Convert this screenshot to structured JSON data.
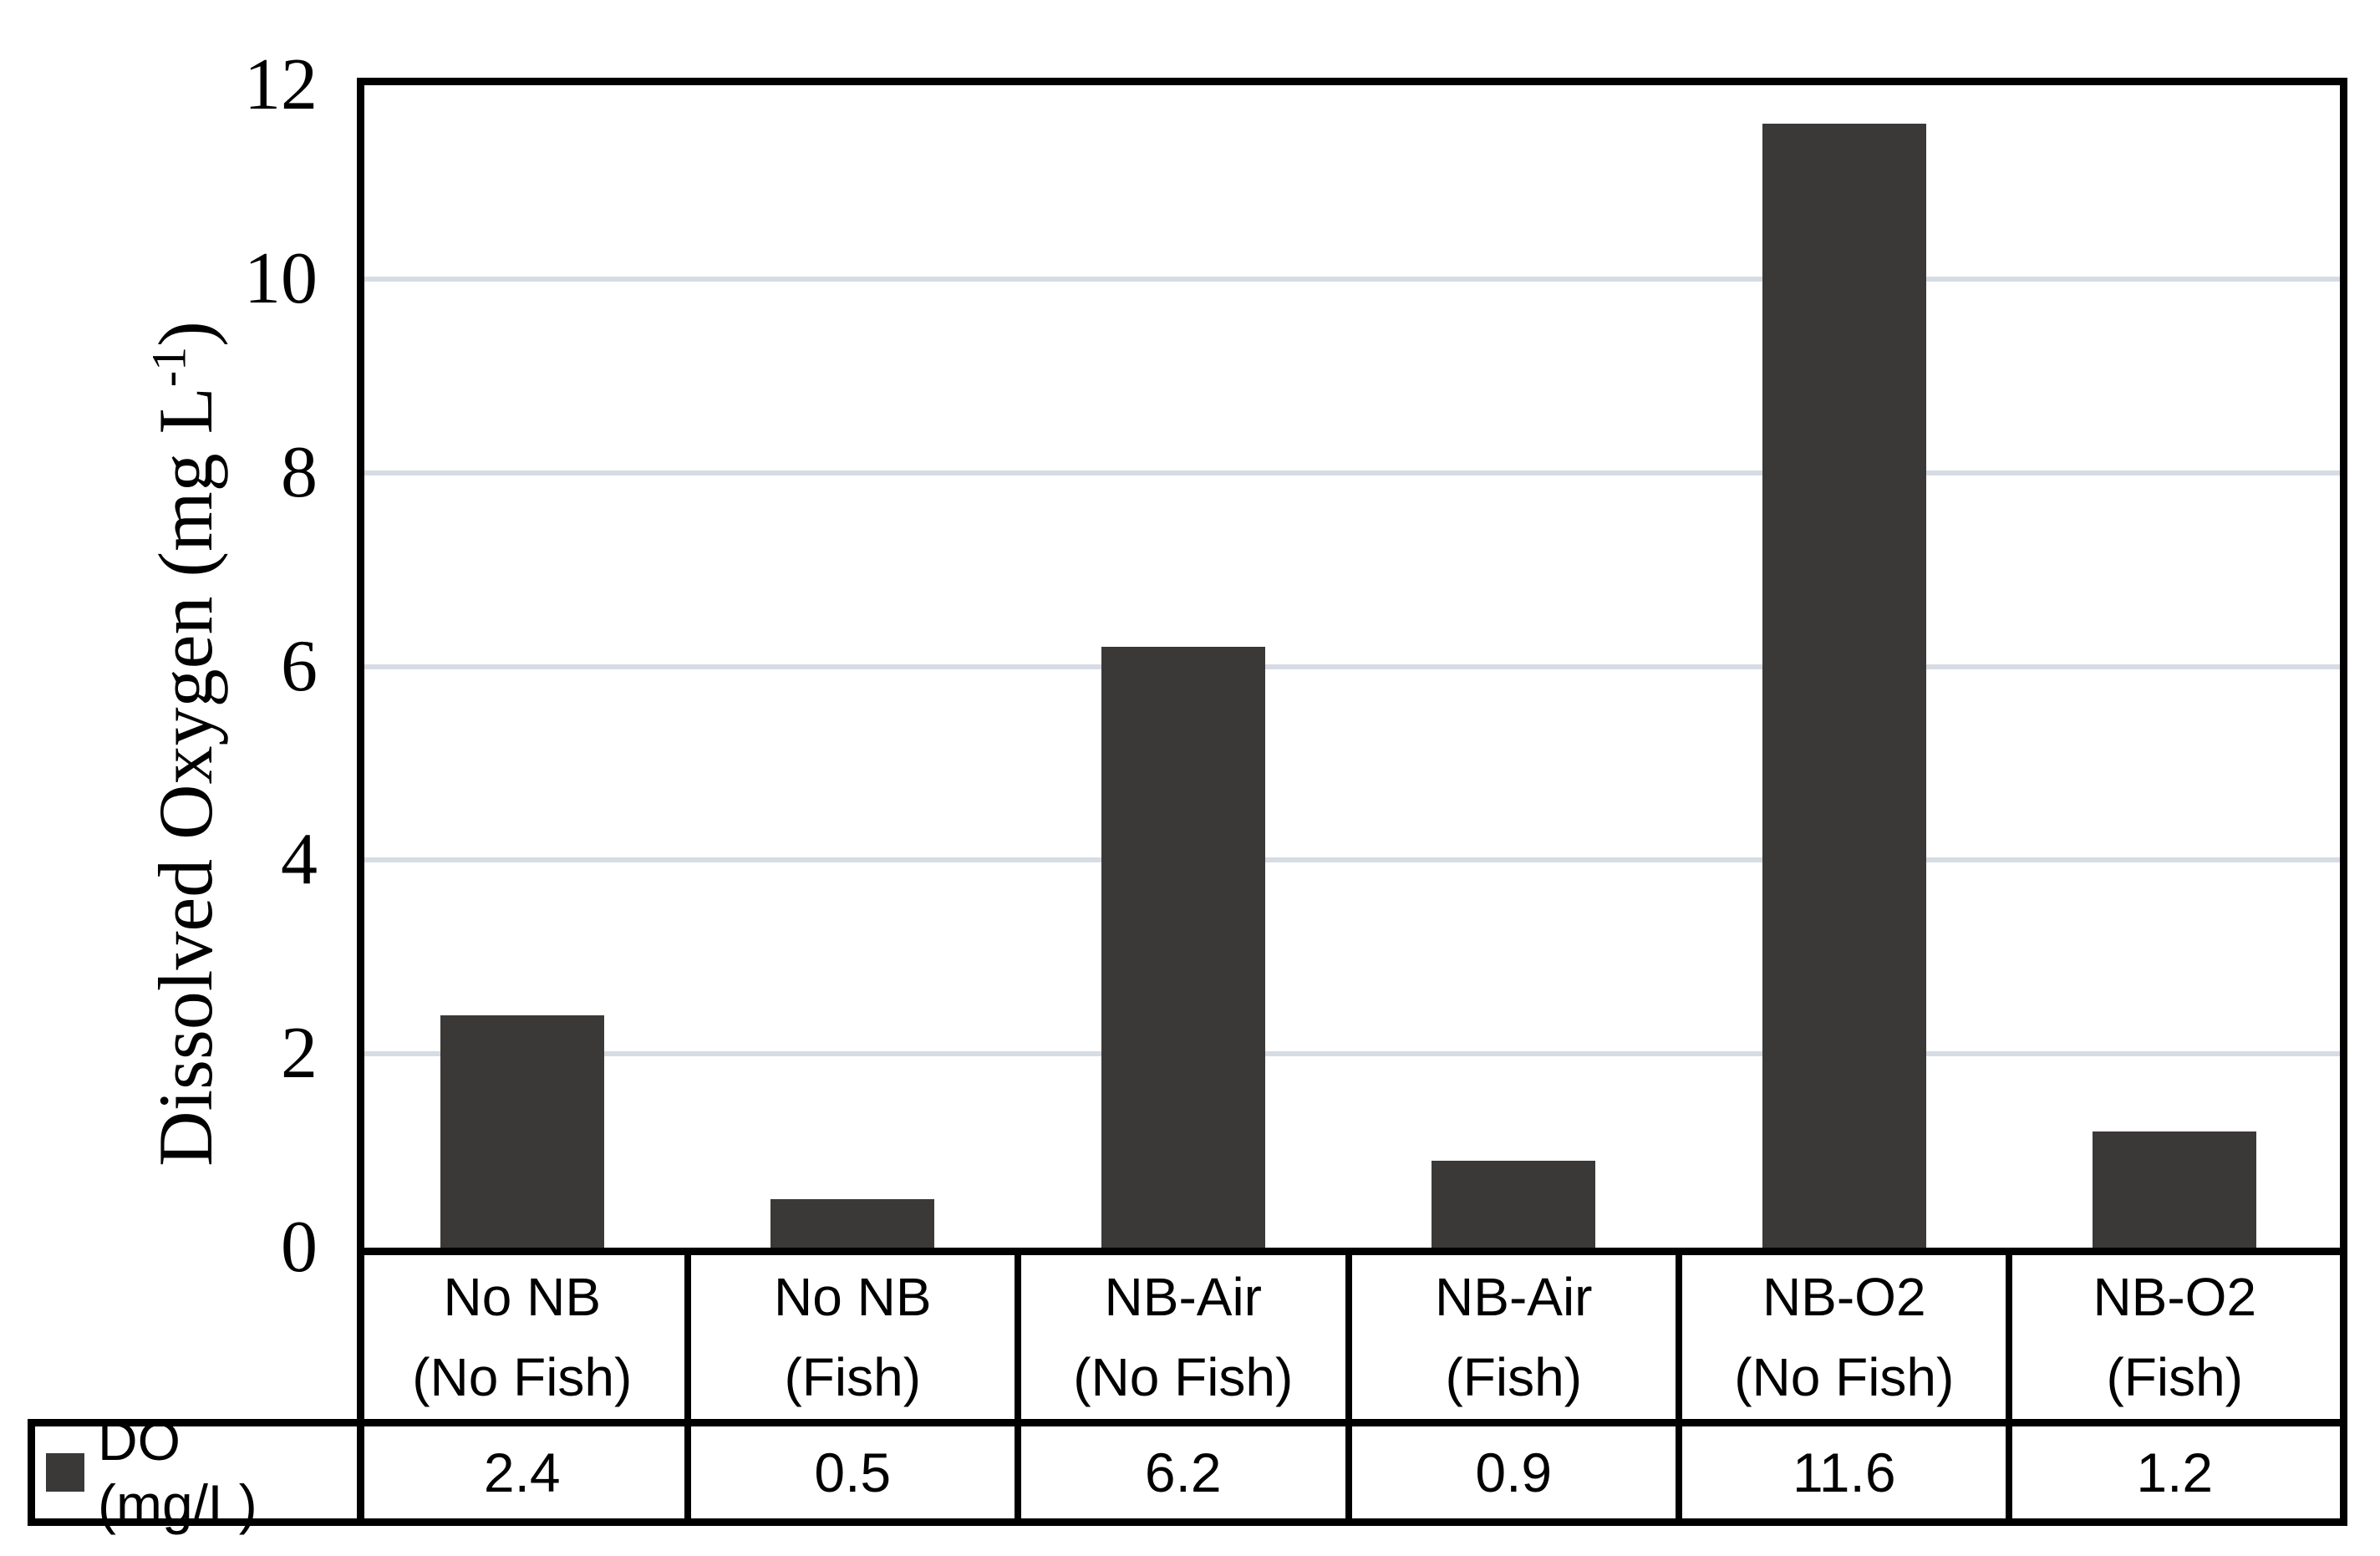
{
  "chart_data": {
    "type": "bar",
    "title": "",
    "categories": [
      "No NB (No Fish)",
      "No NB (Fish)",
      "NB-Air (No Fish)",
      "NB-Air (Fish)",
      "NB-O2 (No Fish)",
      "NB-O2 (Fish)"
    ],
    "categories_lines": [
      [
        "No NB",
        "(No Fish)"
      ],
      [
        "No NB",
        "(Fish)"
      ],
      [
        "NB-Air",
        "(No Fish)"
      ],
      [
        "NB-Air",
        "(Fish)"
      ],
      [
        "NB-O2",
        "(No Fish)"
      ],
      [
        "NB-O2",
        "(Fish)"
      ]
    ],
    "series": [
      {
        "name": "DO (mg/L)",
        "values": [
          2.4,
          0.5,
          6.2,
          0.9,
          11.6,
          1.2
        ]
      }
    ],
    "values_display": [
      "2.4",
      "0.5",
      "6.2",
      "0.9",
      "11.6",
      "1.2"
    ],
    "xlabel": "",
    "ylabel": "Dissolved Oxygen (mg L-1)",
    "ylabel_parts": {
      "main": "Dissolved Oxygen (mg L",
      "sup": "-1",
      "close": ")"
    },
    "ylim": [
      0,
      12
    ],
    "yticks": [
      0,
      2,
      4,
      6,
      8,
      10,
      12
    ],
    "yticks_display": [
      "0",
      "2",
      "4",
      "6",
      "8",
      "10",
      "12"
    ],
    "grid": "horizontal gridlines at 2,4,6,8,10",
    "legend_position": "bottom-left table header cell",
    "colors": {
      "bar": "#3B3838",
      "gridline": "#D6DCE4",
      "axis_line": "#000000",
      "background": "#FFFFFF",
      "text": "#000000"
    }
  },
  "legend": {
    "label": "DO (mg/L)",
    "swatch_color": "#3B3838"
  }
}
